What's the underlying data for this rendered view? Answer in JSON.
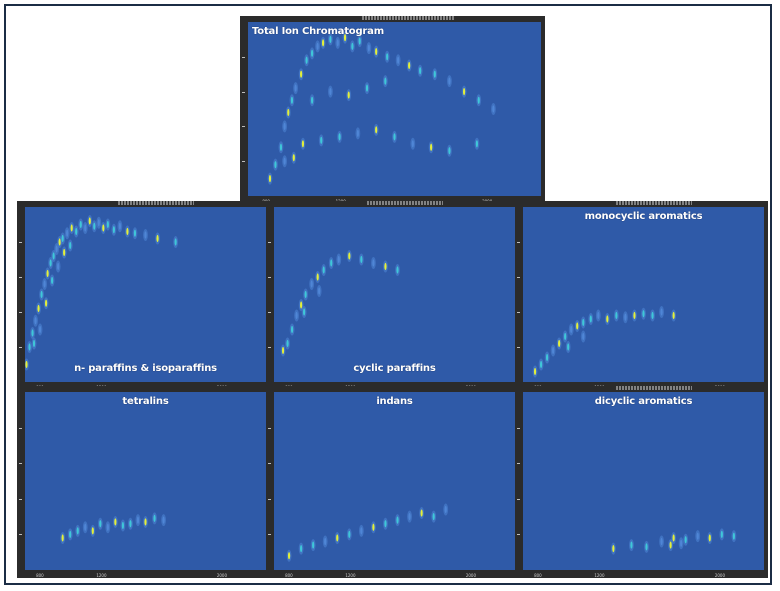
{
  "chart_data": [
    {
      "id": "tic",
      "type": "heatmap",
      "title": "Total Ion Chromatogram",
      "x_ticks": [
        "800",
        "1200",
        "2000"
      ],
      "xlim": [
        700,
        2300
      ],
      "ylim": [
        0,
        1
      ],
      "points": [
        [
          820,
          0.1
        ],
        [
          850,
          0.18
        ],
        [
          880,
          0.28
        ],
        [
          900,
          0.4
        ],
        [
          920,
          0.48
        ],
        [
          940,
          0.55
        ],
        [
          960,
          0.62
        ],
        [
          990,
          0.7
        ],
        [
          1020,
          0.78
        ],
        [
          1050,
          0.82
        ],
        [
          1080,
          0.86
        ],
        [
          1110,
          0.88
        ],
        [
          1150,
          0.9
        ],
        [
          1190,
          0.88
        ],
        [
          1230,
          0.91
        ],
        [
          1270,
          0.86
        ],
        [
          1310,
          0.89
        ],
        [
          1360,
          0.85
        ],
        [
          1400,
          0.83
        ],
        [
          1460,
          0.8
        ],
        [
          1520,
          0.78
        ],
        [
          1580,
          0.75
        ],
        [
          1640,
          0.72
        ],
        [
          1720,
          0.7
        ],
        [
          1800,
          0.66
        ],
        [
          1880,
          0.6
        ],
        [
          1960,
          0.55
        ],
        [
          2040,
          0.5
        ],
        [
          1000,
          0.3
        ],
        [
          1100,
          0.32
        ],
        [
          1200,
          0.34
        ],
        [
          1300,
          0.36
        ],
        [
          1400,
          0.38
        ],
        [
          1500,
          0.34
        ],
        [
          1600,
          0.3
        ],
        [
          1700,
          0.28
        ],
        [
          1800,
          0.26
        ],
        [
          1950,
          0.3
        ],
        [
          900,
          0.2
        ],
        [
          950,
          0.22
        ],
        [
          1050,
          0.55
        ],
        [
          1150,
          0.6
        ],
        [
          1250,
          0.58
        ],
        [
          1350,
          0.62
        ],
        [
          1450,
          0.66
        ]
      ]
    },
    {
      "id": "paraffins",
      "type": "heatmap",
      "title": "n- paraffins & isoparaffins",
      "x_ticks": [
        "800",
        "1200",
        "2000"
      ],
      "xlim": [
        700,
        2300
      ],
      "ylim": [
        0,
        1
      ],
      "points": [
        [
          710,
          0.1
        ],
        [
          730,
          0.2
        ],
        [
          750,
          0.28
        ],
        [
          770,
          0.35
        ],
        [
          790,
          0.42
        ],
        [
          810,
          0.5
        ],
        [
          830,
          0.56
        ],
        [
          850,
          0.62
        ],
        [
          870,
          0.68
        ],
        [
          890,
          0.72
        ],
        [
          910,
          0.76
        ],
        [
          930,
          0.8
        ],
        [
          950,
          0.82
        ],
        [
          980,
          0.85
        ],
        [
          1010,
          0.88
        ],
        [
          1040,
          0.86
        ],
        [
          1070,
          0.9
        ],
        [
          1100,
          0.88
        ],
        [
          1130,
          0.92
        ],
        [
          1160,
          0.89
        ],
        [
          1190,
          0.91
        ],
        [
          1220,
          0.88
        ],
        [
          1250,
          0.9
        ],
        [
          1290,
          0.87
        ],
        [
          1330,
          0.89
        ],
        [
          1380,
          0.86
        ],
        [
          1430,
          0.85
        ],
        [
          1500,
          0.84
        ],
        [
          1580,
          0.82
        ],
        [
          1700,
          0.8
        ],
        [
          760,
          0.22
        ],
        [
          800,
          0.3
        ],
        [
          840,
          0.45
        ],
        [
          880,
          0.58
        ],
        [
          920,
          0.66
        ],
        [
          960,
          0.74
        ],
        [
          1000,
          0.78
        ]
      ]
    },
    {
      "id": "cyclic",
      "type": "heatmap",
      "title": "cyclic paraffins",
      "x_ticks": [
        "800",
        "1200",
        "2000"
      ],
      "xlim": [
        700,
        2300
      ],
      "ylim": [
        0,
        1
      ],
      "points": [
        [
          760,
          0.18
        ],
        [
          790,
          0.22
        ],
        [
          820,
          0.3
        ],
        [
          850,
          0.38
        ],
        [
          880,
          0.44
        ],
        [
          910,
          0.5
        ],
        [
          950,
          0.56
        ],
        [
          990,
          0.6
        ],
        [
          1030,
          0.64
        ],
        [
          1080,
          0.68
        ],
        [
          1130,
          0.7
        ],
        [
          1200,
          0.72
        ],
        [
          1280,
          0.7
        ],
        [
          1360,
          0.68
        ],
        [
          1440,
          0.66
        ],
        [
          1520,
          0.64
        ],
        [
          900,
          0.4
        ],
        [
          1000,
          0.52
        ]
      ]
    },
    {
      "id": "monocyclic",
      "type": "heatmap",
      "title": "monocyclic aromatics",
      "x_ticks": [
        "800",
        "1200",
        "2000"
      ],
      "xlim": [
        700,
        2300
      ],
      "ylim": [
        0,
        1
      ],
      "points": [
        [
          780,
          0.06
        ],
        [
          820,
          0.1
        ],
        [
          860,
          0.14
        ],
        [
          900,
          0.18
        ],
        [
          940,
          0.22
        ],
        [
          980,
          0.26
        ],
        [
          1020,
          0.3
        ],
        [
          1060,
          0.32
        ],
        [
          1100,
          0.34
        ],
        [
          1150,
          0.36
        ],
        [
          1200,
          0.38
        ],
        [
          1260,
          0.36
        ],
        [
          1320,
          0.38
        ],
        [
          1380,
          0.37
        ],
        [
          1440,
          0.38
        ],
        [
          1500,
          0.39
        ],
        [
          1560,
          0.38
        ],
        [
          1620,
          0.4
        ],
        [
          1700,
          0.38
        ],
        [
          1000,
          0.2
        ],
        [
          1100,
          0.26
        ]
      ]
    },
    {
      "id": "tetralins",
      "type": "heatmap",
      "title": "tetralins",
      "x_ticks": [
        "800",
        "1200",
        "2000"
      ],
      "xlim": [
        700,
        2300
      ],
      "ylim": [
        0,
        1
      ],
      "points": [
        [
          950,
          0.18
        ],
        [
          1000,
          0.2
        ],
        [
          1050,
          0.22
        ],
        [
          1100,
          0.24
        ],
        [
          1150,
          0.22
        ],
        [
          1200,
          0.26
        ],
        [
          1250,
          0.24
        ],
        [
          1300,
          0.27
        ],
        [
          1350,
          0.25
        ],
        [
          1400,
          0.26
        ],
        [
          1450,
          0.28
        ],
        [
          1500,
          0.27
        ],
        [
          1560,
          0.29
        ],
        [
          1620,
          0.28
        ]
      ]
    },
    {
      "id": "indans",
      "type": "heatmap",
      "title": "indans",
      "x_ticks": [
        "800",
        "1200",
        "2000"
      ],
      "xlim": [
        700,
        2300
      ],
      "ylim": [
        0,
        1
      ],
      "points": [
        [
          800,
          0.08
        ],
        [
          880,
          0.12
        ],
        [
          960,
          0.14
        ],
        [
          1040,
          0.16
        ],
        [
          1120,
          0.18
        ],
        [
          1200,
          0.2
        ],
        [
          1280,
          0.22
        ],
        [
          1360,
          0.24
        ],
        [
          1440,
          0.26
        ],
        [
          1520,
          0.28
        ],
        [
          1600,
          0.3
        ],
        [
          1680,
          0.32
        ],
        [
          1760,
          0.3
        ],
        [
          1840,
          0.34
        ]
      ]
    },
    {
      "id": "dicyclic",
      "type": "heatmap",
      "title": "dicyclic aromatics",
      "x_ticks": [
        "800",
        "1200",
        "2000"
      ],
      "xlim": [
        700,
        2300
      ],
      "ylim": [
        0,
        1
      ],
      "points": [
        [
          1300,
          0.12
        ],
        [
          1420,
          0.14
        ],
        [
          1520,
          0.13
        ],
        [
          1620,
          0.16
        ],
        [
          1700,
          0.18
        ],
        [
          1780,
          0.17
        ],
        [
          1860,
          0.19
        ],
        [
          1940,
          0.18
        ],
        [
          2020,
          0.2
        ],
        [
          2100,
          0.19
        ],
        [
          1750,
          0.15
        ],
        [
          1680,
          0.14
        ]
      ]
    }
  ],
  "colors": {
    "background": "#2f5aa8",
    "frame": "#2b2b2b",
    "peak_low": "#4f86d6",
    "peak_mid": "#3fc7d8",
    "peak_high": "#e3ef3a"
  }
}
